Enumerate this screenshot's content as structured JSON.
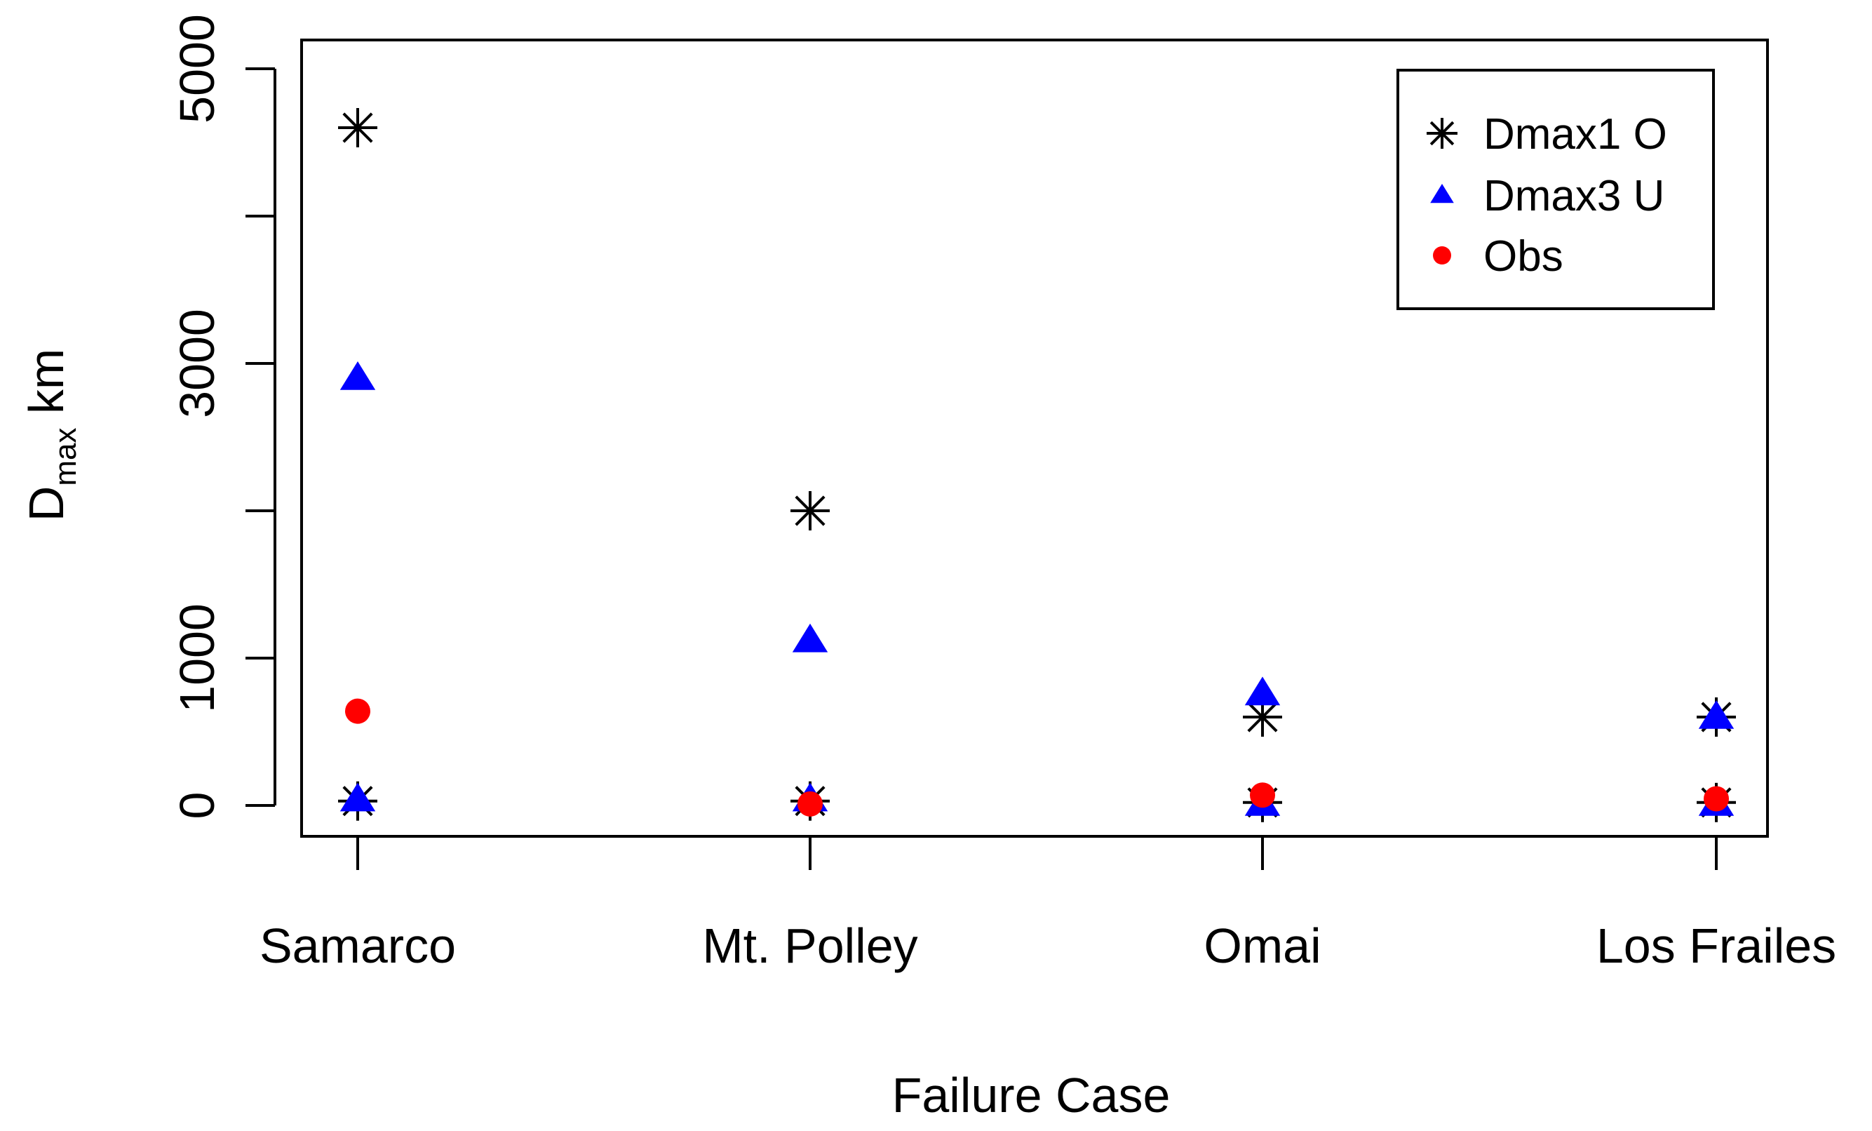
{
  "chart_data": {
    "type": "scatter",
    "title": "",
    "xlabel": "Failure Case",
    "ylabel": {
      "main": "D",
      "subscript": "max",
      "unit": " km"
    },
    "categories": [
      "Samarco",
      "Mt. Polley",
      "Omai",
      "Los Frailes"
    ],
    "ylim": [
      -200,
      5200
    ],
    "yticks": [
      0,
      1000,
      3000,
      5000
    ],
    "ytick_labels": [
      "0",
      "1000",
      "3000",
      "5000"
    ],
    "yminor_ticks": [
      2000,
      4000
    ],
    "legend_position": "top-right",
    "series": [
      {
        "name": "Dmax1 O",
        "marker": "asterisk",
        "color": "#000000",
        "points": [
          [
            0,
            4600
          ],
          [
            0,
            30
          ],
          [
            1,
            2000
          ],
          [
            1,
            30
          ],
          [
            2,
            600
          ],
          [
            2,
            20
          ],
          [
            3,
            600
          ],
          [
            3,
            20
          ]
        ]
      },
      {
        "name": "Dmax3 U",
        "marker": "triangle",
        "color": "#0000ff",
        "points": [
          [
            0,
            2900
          ],
          [
            0,
            40
          ],
          [
            1,
            1120
          ],
          [
            1,
            40
          ],
          [
            2,
            760
          ],
          [
            2,
            10
          ],
          [
            3,
            600
          ],
          [
            3,
            10
          ]
        ]
      },
      {
        "name": "Obs",
        "marker": "circle",
        "color": "#ff0000",
        "points": [
          [
            0,
            640
          ],
          [
            1,
            10
          ],
          [
            2,
            70
          ],
          [
            3,
            45
          ]
        ]
      }
    ]
  }
}
